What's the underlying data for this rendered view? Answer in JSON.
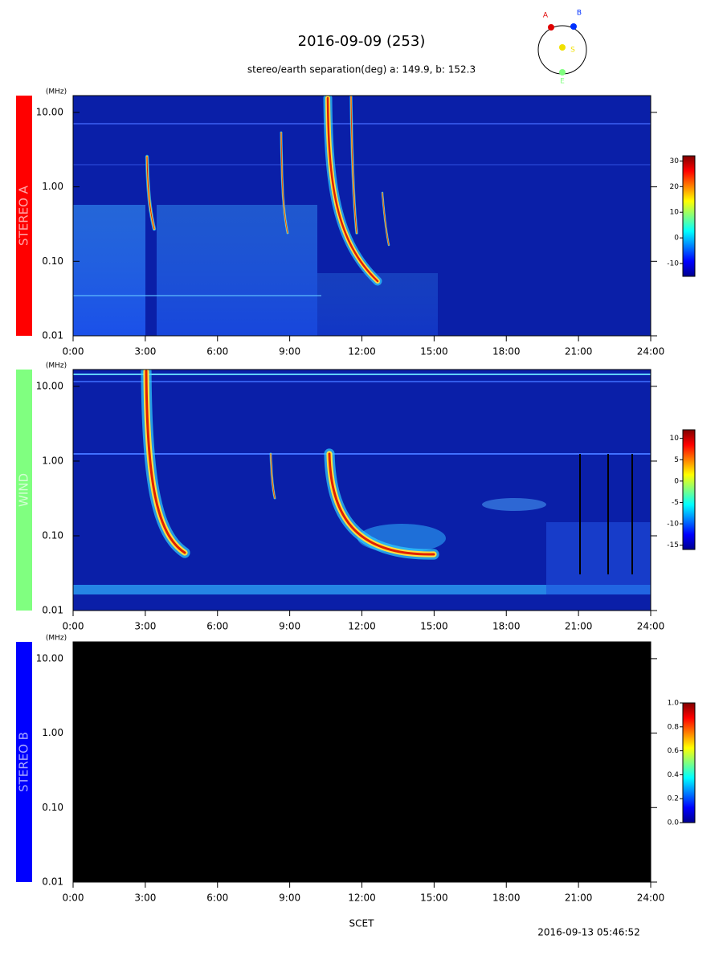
{
  "title": "2016-09-09 (253)",
  "subtitle": "stereo/earth separation(deg) a: 149.9, b: 152.3",
  "orbit": {
    "points": [
      {
        "name": "A",
        "color": "#e00000"
      },
      {
        "name": "B",
        "color": "#0030ff"
      },
      {
        "name": "S",
        "color": "#f0e000"
      },
      {
        "name": "E",
        "color": "#80ff80"
      }
    ]
  },
  "x_label": "SCET",
  "timestamp": "2016-09-13 05:46:52",
  "chart_data": [
    {
      "type": "spectrogram",
      "panel_label": "STEREO A",
      "label_color": "#ff0000",
      "background": "#0a1fa8",
      "y_unit": "(MHz)",
      "log_y": true,
      "ylim": [
        0.01,
        16.8
      ],
      "yticks": [
        {
          "value": 10,
          "label": "10.00"
        },
        {
          "value": 1,
          "label": "1.00"
        },
        {
          "value": 0.1,
          "label": "0.10"
        },
        {
          "value": 0.01,
          "label": "0.01"
        }
      ],
      "xlim": [
        0,
        24
      ],
      "xticks": [
        {
          "value": 0,
          "label": "0:00"
        },
        {
          "value": 3,
          "label": "3:00"
        },
        {
          "value": 6,
          "label": "6:00"
        },
        {
          "value": 9,
          "label": "9:00"
        },
        {
          "value": 12,
          "label": "12:00"
        },
        {
          "value": 15,
          "label": "15:00"
        },
        {
          "value": 18,
          "label": "18:00"
        },
        {
          "value": 21,
          "label": "21:00"
        },
        {
          "value": 24,
          "label": "24:00"
        }
      ],
      "colorbar": {
        "lim": [
          -15,
          32
        ],
        "ticks": [
          -10,
          0,
          10,
          20,
          30
        ]
      }
    },
    {
      "type": "spectrogram",
      "panel_label": "WIND",
      "label_color": "#80ff80",
      "background": "#0a1fa8",
      "y_unit": "(MHz)",
      "log_y": true,
      "ylim": [
        0.01,
        16.8
      ],
      "yticks": [
        {
          "value": 10,
          "label": "10.00"
        },
        {
          "value": 1,
          "label": "1.00"
        },
        {
          "value": 0.1,
          "label": "0.10"
        },
        {
          "value": 0.01,
          "label": "0.01"
        }
      ],
      "xlim": [
        0,
        24
      ],
      "xticks": [
        {
          "value": 0,
          "label": "0:00"
        },
        {
          "value": 3,
          "label": "3:00"
        },
        {
          "value": 6,
          "label": "6:00"
        },
        {
          "value": 9,
          "label": "9:00"
        },
        {
          "value": 12,
          "label": "12:00"
        },
        {
          "value": 15,
          "label": "15:00"
        },
        {
          "value": 18,
          "label": "18:00"
        },
        {
          "value": 21,
          "label": "21:00"
        },
        {
          "value": 24,
          "label": "24:00"
        }
      ],
      "colorbar": {
        "lim": [
          -16,
          12
        ],
        "ticks": [
          10,
          5,
          0,
          -5,
          -10,
          -15
        ]
      }
    },
    {
      "type": "spectrogram",
      "panel_label": "STEREO B",
      "label_color": "#0000ff",
      "background": "#000000",
      "y_unit": "(MHz)",
      "log_y": true,
      "ylim": [
        0.01,
        16.8
      ],
      "yticks": [
        {
          "value": 10,
          "label": "10.00"
        },
        {
          "value": 1,
          "label": "1.00"
        },
        {
          "value": 0.1,
          "label": "0.10"
        },
        {
          "value": 0.01,
          "label": "0.01"
        }
      ],
      "xlim": [
        0,
        24
      ],
      "xticks": [
        {
          "value": 0,
          "label": "0:00"
        },
        {
          "value": 3,
          "label": "3:00"
        },
        {
          "value": 6,
          "label": "6:00"
        },
        {
          "value": 9,
          "label": "9:00"
        },
        {
          "value": 12,
          "label": "12:00"
        },
        {
          "value": 15,
          "label": "15:00"
        },
        {
          "value": 18,
          "label": "18:00"
        },
        {
          "value": 21,
          "label": "21:00"
        },
        {
          "value": 24,
          "label": "24:00"
        }
      ],
      "colorbar": {
        "lim": [
          0,
          1
        ],
        "ticks": [
          {
            "value": 0,
            "label": "0.0"
          },
          {
            "value": 0.2,
            "label": "0.2"
          },
          {
            "value": 0.4,
            "label": "0.4"
          },
          {
            "value": 0.6,
            "label": "0.6"
          },
          {
            "value": 0.8,
            "label": "0.8"
          },
          {
            "value": 1,
            "label": "1.0"
          }
        ]
      }
    }
  ]
}
